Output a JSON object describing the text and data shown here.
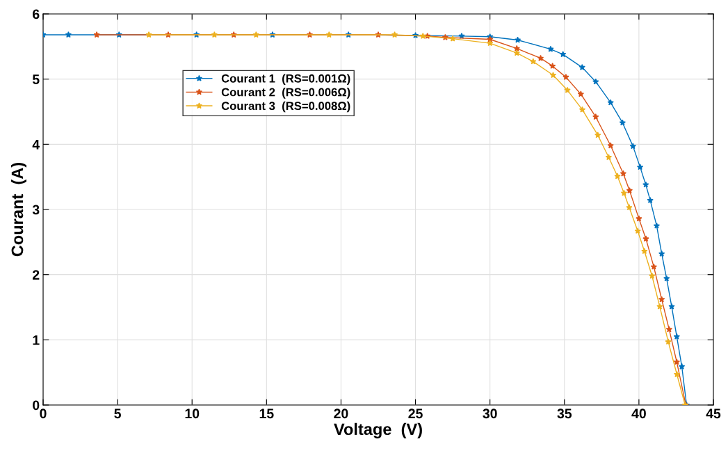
{
  "chart_data": {
    "type": "line",
    "xlabel": "Voltage  (V)",
    "ylabel": "Courant  (A)",
    "xlim": [
      0,
      45
    ],
    "ylim": [
      0,
      6
    ],
    "xticks": [
      0,
      5,
      10,
      15,
      20,
      25,
      30,
      35,
      40,
      45
    ],
    "yticks": [
      0,
      1,
      2,
      3,
      4,
      5,
      6
    ],
    "grid": true,
    "legend": "top left",
    "marker": "star",
    "line_style": "solid",
    "series": [
      {
        "name": "Courant 1  (RS=0.001Ω)",
        "color": "#0072bd",
        "x": [
          0,
          1.7,
          5.1,
          10.3,
          15.4,
          20.5,
          25,
          28.1,
          30,
          31.86,
          34.07,
          34.9,
          36.19,
          37.1,
          38.1,
          38.9,
          39.6,
          40.08,
          40.46,
          40.76,
          41.19,
          41.53,
          41.86,
          42.2,
          42.54,
          42.88,
          43.2
        ],
        "values": [
          5.68,
          5.68,
          5.68,
          5.68,
          5.68,
          5.68,
          5.67,
          5.66,
          5.65,
          5.6,
          5.46,
          5.38,
          5.18,
          4.96,
          4.64,
          4.33,
          3.97,
          3.65,
          3.38,
          3.14,
          2.75,
          2.32,
          1.94,
          1.51,
          1.05,
          0.59,
          0
        ]
      },
      {
        "name": "Courant 2  (RS=0.006Ω)",
        "color": "#d95319",
        "x": [
          3.6,
          8.4,
          12.8,
          17.9,
          22.5,
          25.8,
          27,
          30,
          31.8,
          33.4,
          34.2,
          35.1,
          36.1,
          37.1,
          38.1,
          38.95,
          39.37,
          40,
          40.47,
          41,
          41.53,
          42.03,
          42.54,
          43.15
        ],
        "values": [
          5.68,
          5.68,
          5.68,
          5.68,
          5.68,
          5.66,
          5.64,
          5.61,
          5.47,
          5.32,
          5.2,
          5.03,
          4.77,
          4.42,
          3.98,
          3.55,
          3.29,
          2.86,
          2.55,
          2.12,
          1.62,
          1.16,
          0.66,
          0
        ]
      },
      {
        "name": "Courant 3  (RS=0.008Ω)",
        "color": "#edb120",
        "x": [
          7.1,
          11.5,
          14.3,
          19.2,
          23.6,
          25.5,
          27.5,
          30,
          31.8,
          32.9,
          34.24,
          35.2,
          36.2,
          37.24,
          37.97,
          38.56,
          39,
          39.35,
          39.92,
          40.37,
          40.88,
          41.4,
          41.97,
          42.55,
          43.1
        ],
        "values": [
          5.68,
          5.68,
          5.68,
          5.68,
          5.68,
          5.66,
          5.62,
          5.55,
          5.4,
          5.27,
          5.06,
          4.83,
          4.53,
          4.14,
          3.8,
          3.51,
          3.25,
          3.03,
          2.67,
          2.36,
          1.98,
          1.51,
          0.97,
          0.47,
          0
        ]
      }
    ]
  }
}
